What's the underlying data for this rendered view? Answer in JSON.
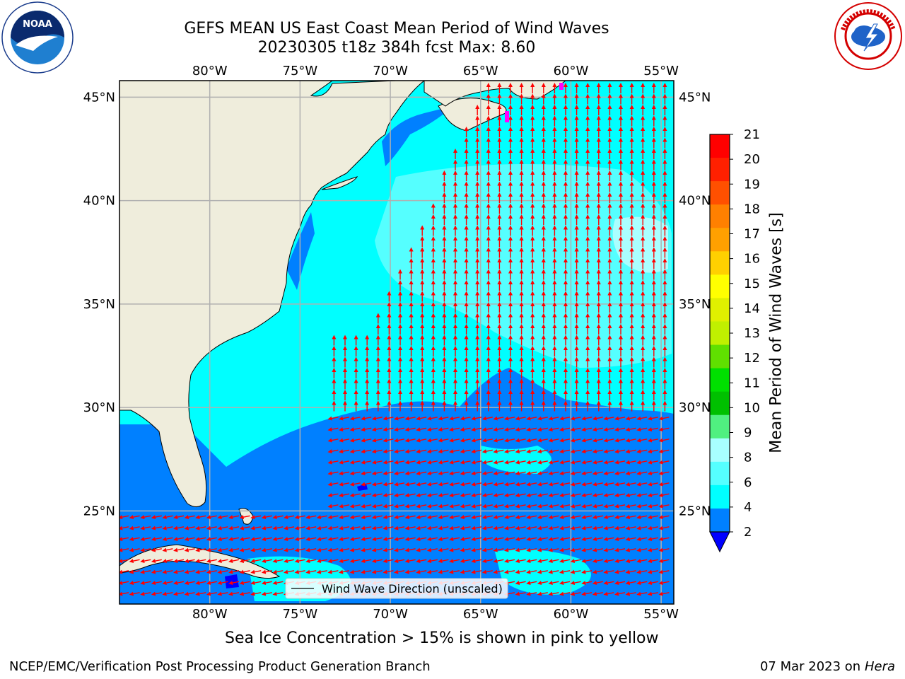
{
  "title": {
    "line1": "GEFS MEAN US East Coast Mean Period of Wind Waves",
    "line2": "20230305 t18z 384h fcst   Max: 8.60"
  },
  "logos": {
    "left": "noaa-logo",
    "right": "nws-logo"
  },
  "map": {
    "lon_labels": [
      "80°W",
      "75°W",
      "70°W",
      "65°W",
      "60°W",
      "55°W"
    ],
    "lon_values": [
      -80,
      -75,
      -70,
      -65,
      -60,
      -55
    ],
    "lat_labels": [
      "45°N",
      "40°N",
      "35°N",
      "30°N",
      "25°N"
    ],
    "lat_values": [
      45,
      40,
      35,
      30,
      25
    ],
    "extent": {
      "lon_min": -85,
      "lon_max": -54.3,
      "lat_min": 20.5,
      "lat_max": 45.8
    },
    "colors": {
      "land": "#efeddc",
      "ocean_2_4": "#0080ff",
      "ocean_4_6": "#00ffff",
      "ocean_6_8": "#55ffff",
      "ocean_8_9": "#aaffff",
      "below_2": "#0000ff",
      "arrow": "#ff0000",
      "grid": "#b0b0b0",
      "sea_ice": "#ff00ff"
    },
    "legend_label": "Wind Wave Direction (unscaled)"
  },
  "colorbar": {
    "title": "Mean Period of Wind Waves [s]",
    "ticks": [
      "21",
      "20",
      "19",
      "18",
      "17",
      "16",
      "15",
      "14",
      "13",
      "12",
      "11",
      "10",
      "9",
      "8",
      "6",
      "4",
      "2"
    ],
    "colors": [
      "#ff0000",
      "#ff2000",
      "#ff5000",
      "#ff8000",
      "#ffa000",
      "#ffd000",
      "#ffff00",
      "#e0f000",
      "#c0f000",
      "#60e000",
      "#00e000",
      "#00c000",
      "#50f080",
      "#a8ffff",
      "#55ffff",
      "#00ffff",
      "#0080ff"
    ],
    "extend_color": "#0000ff"
  },
  "caption": "Sea Ice Concentration > 15% is shown in pink to yellow",
  "footer": {
    "left": "NCEP/EMC/Verification Post Processing Product Generation Branch",
    "date": "07 Mar 2023 on",
    "host": "Hera"
  }
}
